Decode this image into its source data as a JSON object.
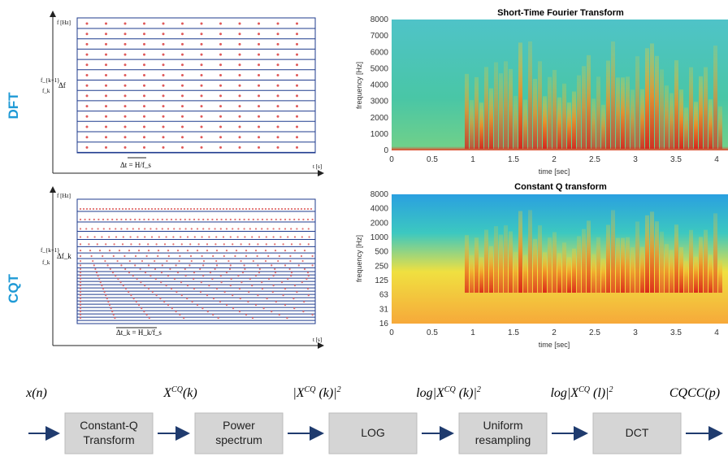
{
  "side_labels": {
    "dft": "DFT",
    "cqt": "CQT"
  },
  "dft_diagram": {
    "y_axis": "f [Hz]",
    "x_axis": "t [s]",
    "f_upper": "f_{k+1}",
    "f_lower": "f_k",
    "delta_f": "Δf",
    "delta_t": "Δt = H/f_s"
  },
  "cqt_diagram": {
    "y_axis": "f [Hz]",
    "x_axis": "t [s]",
    "f_upper": "f_{k+1}",
    "f_lower": "f_k",
    "delta_f": "Δf_k",
    "delta_t": "Δt_k = H_k/f_s"
  },
  "stft_plot": {
    "title": "Short-Time Fourier Transform",
    "y_label": "frequency [Hz]",
    "x_label": "time [sec]",
    "y_ticks": [
      "0",
      "1000",
      "2000",
      "3000",
      "4000",
      "5000",
      "6000",
      "7000",
      "8000"
    ],
    "x_ticks": [
      "0",
      "0.5",
      "1",
      "1.5",
      "2",
      "2.5",
      "3",
      "3.5",
      "4"
    ]
  },
  "cq_plot": {
    "title": "Constant Q transform",
    "y_label": "frequency [Hz]",
    "x_label": "time [sec]",
    "y_ticks": [
      "16",
      "31",
      "63",
      "125",
      "250",
      "500",
      "1000",
      "2000",
      "4000",
      "8000"
    ],
    "x_ticks": [
      "0",
      "0.5",
      "1",
      "1.5",
      "2",
      "2.5",
      "3",
      "3.5",
      "4"
    ]
  },
  "pipeline": {
    "signals": [
      [
        {
          "t": "x(n)"
        }
      ],
      [
        {
          "t": "X"
        },
        {
          "t": "CQ",
          "sup": true
        },
        {
          "t": "(k)"
        }
      ],
      [
        {
          "t": "|X"
        },
        {
          "t": "CQ",
          "sup": true
        },
        {
          "t": " (k)|"
        },
        {
          "t": "2",
          "sup": true
        }
      ],
      [
        {
          "t": "log|X"
        },
        {
          "t": "CQ",
          "sup": true
        },
        {
          "t": " (k)|"
        },
        {
          "t": "2",
          "sup": true
        }
      ],
      [
        {
          "t": "log|X"
        },
        {
          "t": "CQ",
          "sup": true
        },
        {
          "t": " (l)|"
        },
        {
          "t": "2",
          "sup": true
        }
      ],
      [
        {
          "t": "CQCC(p)"
        }
      ]
    ],
    "blocks": [
      [
        "Constant-Q",
        "Transform"
      ],
      [
        "Power",
        "spectrum"
      ],
      [
        "LOG"
      ],
      [
        "Uniform",
        "resampling"
      ],
      [
        "DCT"
      ]
    ]
  }
}
